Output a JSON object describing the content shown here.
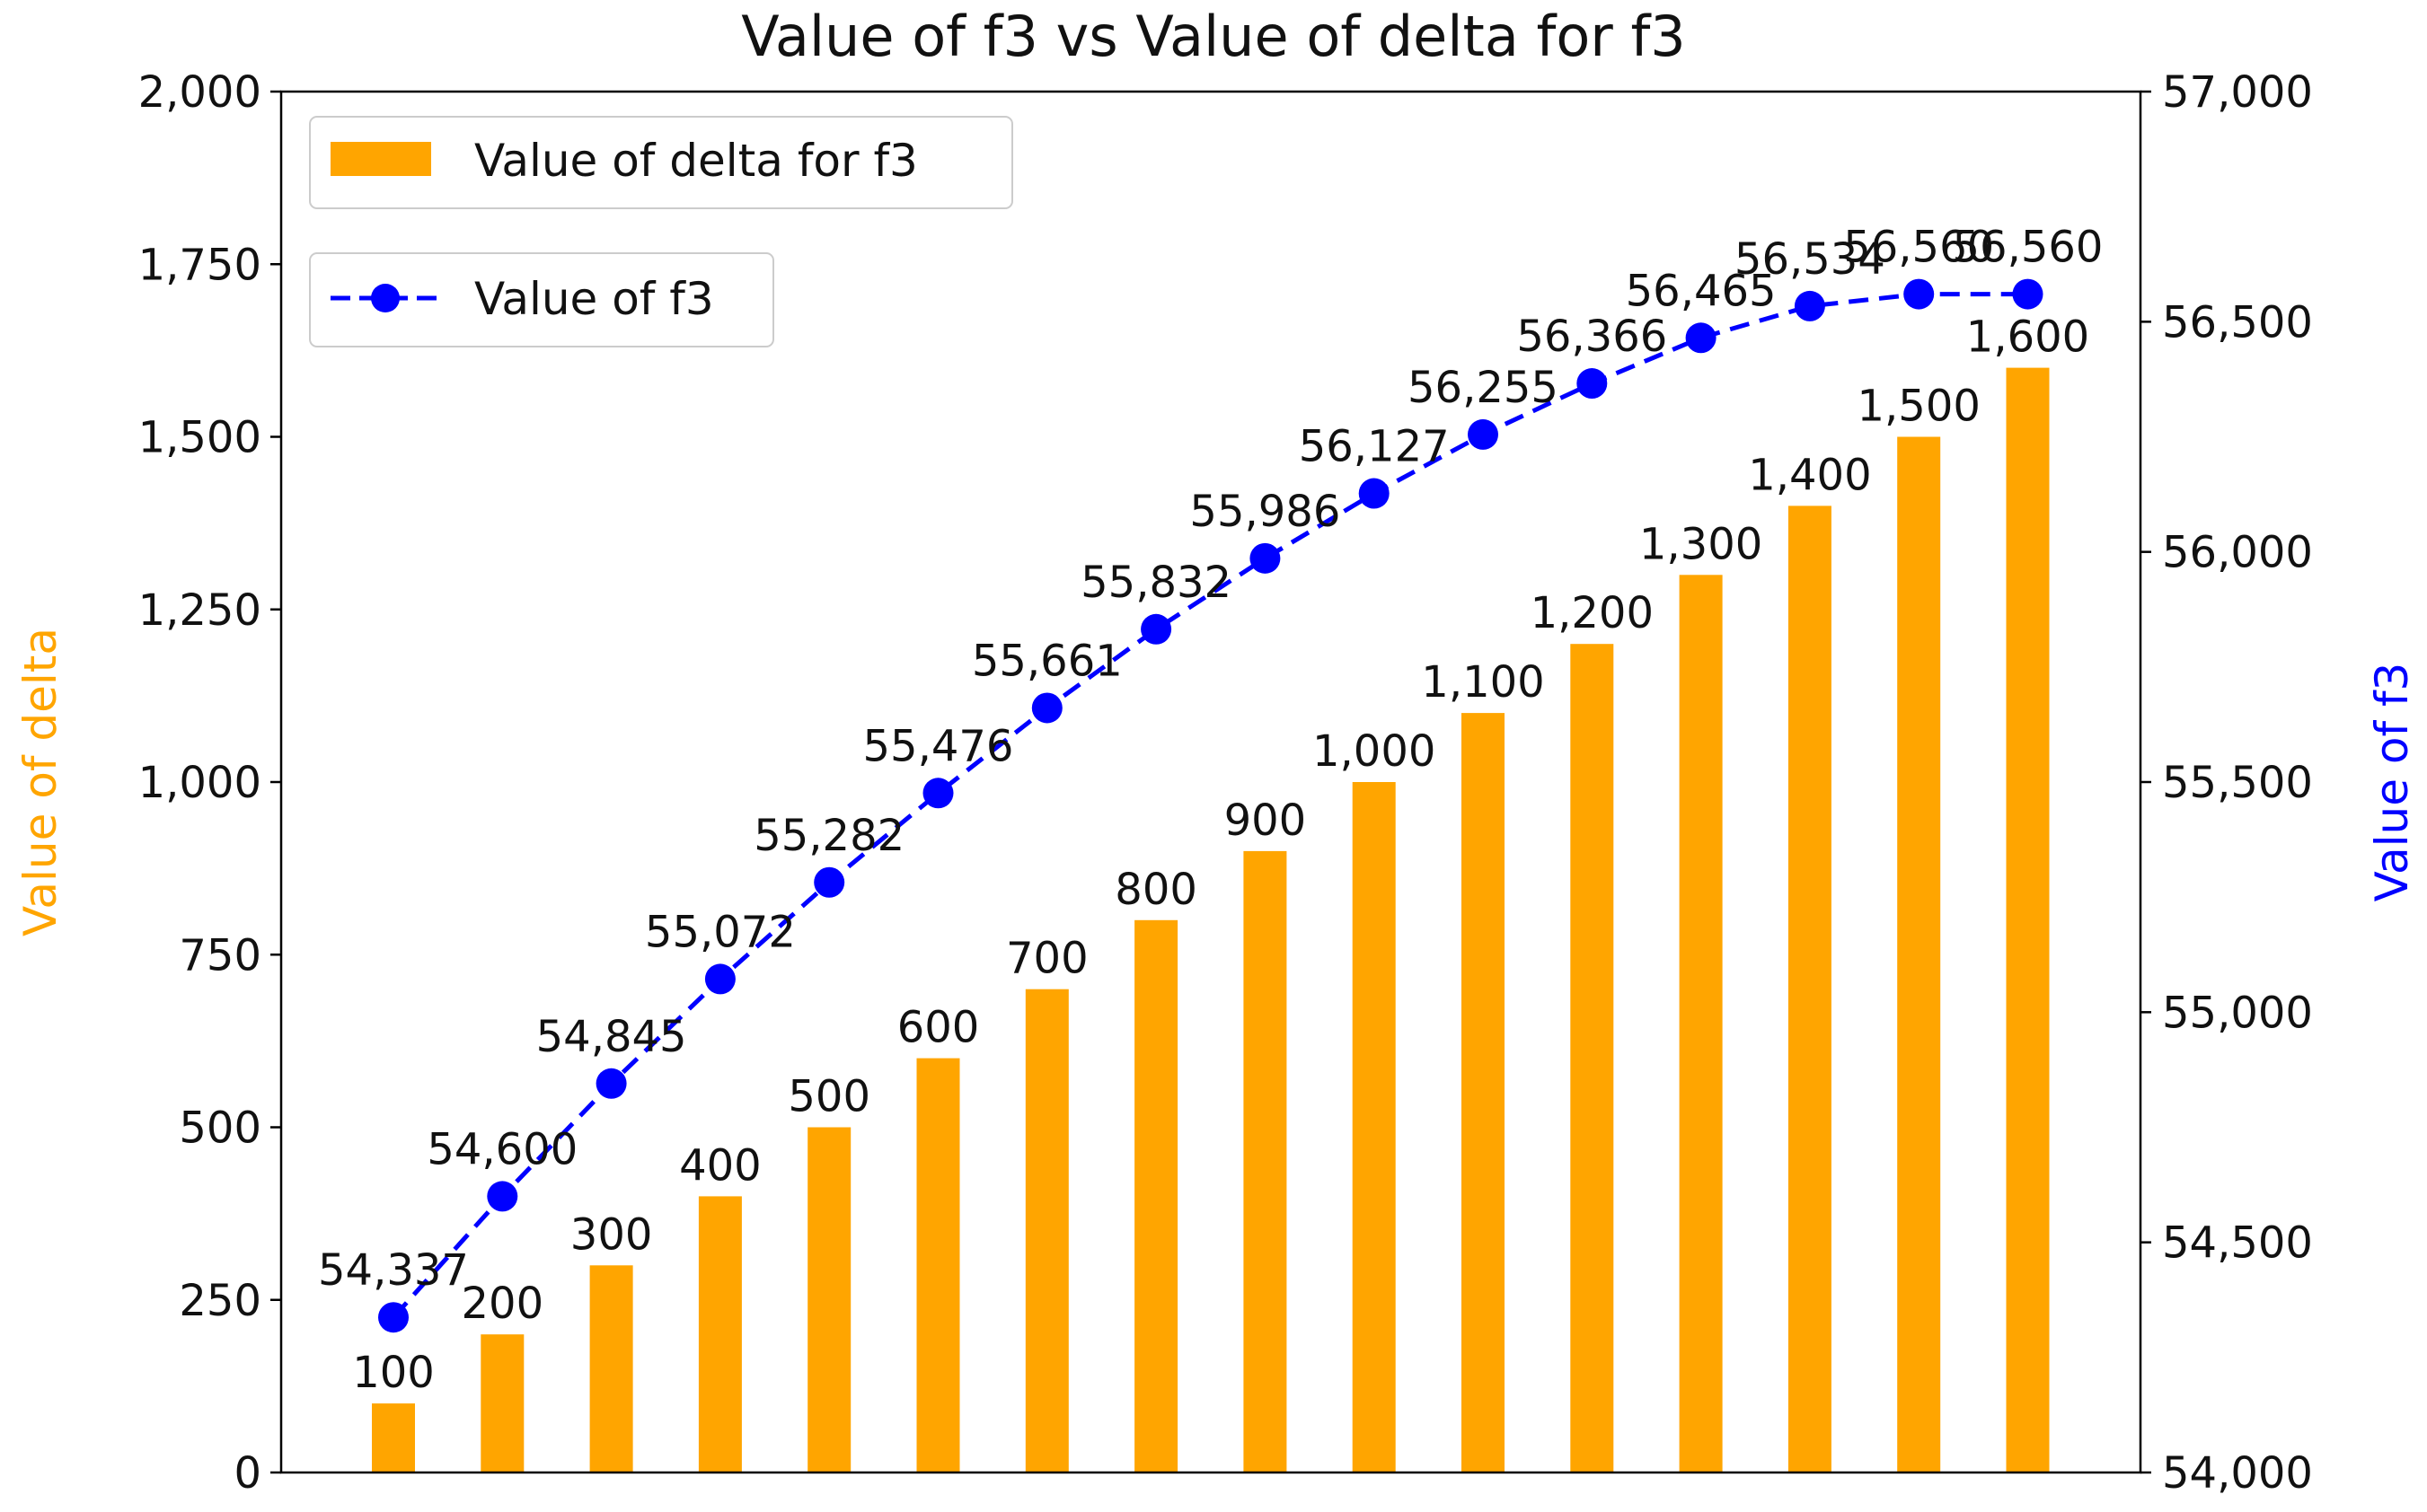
{
  "chart_data": {
    "type": "bar+line",
    "title": "Value of f3 vs Value of delta for f3",
    "ylabel_left": "Value of delta",
    "ylabel_right": "Value of f3",
    "ylim_left": [
      0,
      2000
    ],
    "ylim_right": [
      54000,
      57000
    ],
    "yticks_left": [
      "0",
      "250",
      "500",
      "750",
      "1,000",
      "1,250",
      "1,500",
      "1,750",
      "2,000"
    ],
    "yticks_right": [
      "54,000",
      "54,500",
      "55,000",
      "55,500",
      "56,000",
      "56,500",
      "57,000"
    ],
    "bar_series": {
      "name": "Value of delta for f3",
      "color": "#FFA500",
      "values": [
        100,
        200,
        300,
        400,
        500,
        600,
        700,
        800,
        900,
        1000,
        1100,
        1200,
        1300,
        1400,
        1500,
        1600
      ],
      "labels": [
        "100",
        "200",
        "300",
        "400",
        "500",
        "600",
        "700",
        "800",
        "900",
        "1,000",
        "1,100",
        "1,200",
        "1,300",
        "1,400",
        "1,500",
        "1,600"
      ]
    },
    "line_series": {
      "name": "Value of f3",
      "color": "#0000FF",
      "style": "dashed with circle markers",
      "values": [
        54337,
        54600,
        54845,
        55072,
        55282,
        55476,
        55661,
        55832,
        55986,
        56127,
        56255,
        56366,
        56465,
        56534,
        56560,
        56560
      ],
      "labels": [
        "54,337",
        "54,600",
        "54,845",
        "55,072",
        "55,282",
        "55,476",
        "55,661",
        "55,832",
        "55,986",
        "56,127",
        "56,255",
        "56,366",
        "56,465",
        "56,534",
        "56,560",
        "56,560"
      ]
    },
    "legend": {
      "bar_label": "Value of delta for f3",
      "line_label": "Value of f3",
      "placement": "top-left"
    },
    "grid": false
  }
}
